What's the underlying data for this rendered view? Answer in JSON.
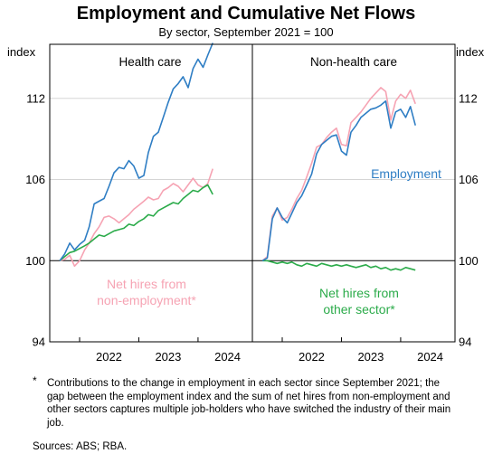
{
  "chart_data": {
    "type": "line",
    "title": "Employment and Cumulative Net Flows",
    "subtitle": "By sector, September 2021 = 100",
    "ylabel_left": "index",
    "ylabel_right": "index",
    "ylim": [
      94,
      116
    ],
    "yticks": [
      94,
      100,
      106,
      112
    ],
    "xticks": [
      "2022",
      "2023",
      "2024"
    ],
    "grid": "horizontal at 100 and 106, 112",
    "colors": {
      "employment": "#2f7ec4",
      "nonemp": "#f6a3b3",
      "othersector": "#2bab4a"
    },
    "panels": [
      {
        "title": "Health care",
        "series": [
          {
            "key": "employment",
            "color": "#2f7ec4",
            "x": [
              "2021-09",
              "2021-10",
              "2021-11",
              "2021-12",
              "2022-01",
              "2022-02",
              "2022-03",
              "2022-04",
              "2022-05",
              "2022-06",
              "2022-07",
              "2022-08",
              "2022-09",
              "2022-10",
              "2022-11",
              "2022-12",
              "2023-01",
              "2023-02",
              "2023-03",
              "2023-04",
              "2023-05",
              "2023-06",
              "2023-07",
              "2023-08",
              "2023-09",
              "2023-10",
              "2023-11",
              "2023-12",
              "2024-01",
              "2024-02",
              "2024-03",
              "2024-04"
            ],
            "values": [
              100.0,
              100.5,
              101.3,
              100.8,
              101.2,
              101.5,
              102.5,
              104.2,
              104.4,
              104.6,
              105.5,
              106.5,
              106.9,
              106.8,
              107.4,
              107.0,
              106.1,
              106.3,
              108.0,
              109.2,
              109.5,
              110.6,
              111.7,
              112.7,
              113.1,
              113.6,
              112.8,
              114.2,
              114.9,
              114.3,
              115.2,
              116.1
            ]
          },
          {
            "key": "nonemp",
            "color": "#f6a3b3",
            "x": [
              "2021-09",
              "2021-10",
              "2021-11",
              "2021-12",
              "2022-01",
              "2022-02",
              "2022-03",
              "2022-04",
              "2022-05",
              "2022-06",
              "2022-07",
              "2022-08",
              "2022-09",
              "2022-10",
              "2022-11",
              "2022-12",
              "2023-01",
              "2023-02",
              "2023-03",
              "2023-04",
              "2023-05",
              "2023-06",
              "2023-07",
              "2023-08",
              "2023-09",
              "2023-10",
              "2023-11",
              "2023-12",
              "2024-01",
              "2024-02",
              "2024-03",
              "2024-04"
            ],
            "values": [
              100.0,
              100.1,
              100.4,
              99.6,
              100.0,
              100.8,
              101.3,
              102.0,
              102.5,
              103.2,
              103.3,
              103.1,
              102.8,
              103.1,
              103.4,
              103.8,
              104.1,
              104.4,
              104.7,
              104.5,
              104.6,
              105.2,
              105.4,
              105.7,
              105.5,
              105.1,
              105.6,
              106.1,
              105.6,
              105.4,
              105.7,
              106.8
            ]
          },
          {
            "key": "othersector",
            "color": "#2bab4a",
            "x": [
              "2021-09",
              "2021-10",
              "2021-11",
              "2021-12",
              "2022-01",
              "2022-02",
              "2022-03",
              "2022-04",
              "2022-05",
              "2022-06",
              "2022-07",
              "2022-08",
              "2022-09",
              "2022-10",
              "2022-11",
              "2022-12",
              "2023-01",
              "2023-02",
              "2023-03",
              "2023-04",
              "2023-05",
              "2023-06",
              "2023-07",
              "2023-08",
              "2023-09",
              "2023-10",
              "2023-11",
              "2023-12",
              "2024-01",
              "2024-02",
              "2024-03",
              "2024-04"
            ],
            "values": [
              100.0,
              100.3,
              100.6,
              100.7,
              100.9,
              101.1,
              101.3,
              101.6,
              101.9,
              101.8,
              102.0,
              102.2,
              102.3,
              102.4,
              102.7,
              102.6,
              102.9,
              103.1,
              103.4,
              103.3,
              103.7,
              103.9,
              104.1,
              104.3,
              104.2,
              104.6,
              104.9,
              105.2,
              105.1,
              105.4,
              105.6,
              104.9
            ]
          }
        ],
        "annotations": [
          {
            "text": "Net hires from",
            "series": "nonemp"
          },
          {
            "text": "non-employment*",
            "series": "nonemp"
          }
        ]
      },
      {
        "title": "Non-health care",
        "series": [
          {
            "key": "employment",
            "color": "#2f7ec4",
            "x": [
              "2021-09",
              "2021-10",
              "2021-11",
              "2021-12",
              "2022-01",
              "2022-02",
              "2022-03",
              "2022-04",
              "2022-05",
              "2022-06",
              "2022-07",
              "2022-08",
              "2022-09",
              "2022-10",
              "2022-11",
              "2022-12",
              "2023-01",
              "2023-02",
              "2023-03",
              "2023-04",
              "2023-05",
              "2023-06",
              "2023-07",
              "2023-08",
              "2023-09",
              "2023-10",
              "2023-11",
              "2023-12",
              "2024-01",
              "2024-02",
              "2024-03",
              "2024-04"
            ],
            "values": [
              100.0,
              100.2,
              103.1,
              103.9,
              103.2,
              102.8,
              103.5,
              104.3,
              104.8,
              105.6,
              106.4,
              107.9,
              108.6,
              108.9,
              109.2,
              109.3,
              108.1,
              107.8,
              109.5,
              110.0,
              110.6,
              110.9,
              111.2,
              111.3,
              111.5,
              111.8,
              109.8,
              111.0,
              111.2,
              110.6,
              111.4,
              110.0
            ]
          },
          {
            "key": "nonemp",
            "color": "#f6a3b3",
            "x": [
              "2021-09",
              "2021-10",
              "2021-11",
              "2021-12",
              "2022-01",
              "2022-02",
              "2022-03",
              "2022-04",
              "2022-05",
              "2022-06",
              "2022-07",
              "2022-08",
              "2022-09",
              "2022-10",
              "2022-11",
              "2022-12",
              "2023-01",
              "2023-02",
              "2023-03",
              "2023-04",
              "2023-05",
              "2023-06",
              "2023-07",
              "2023-08",
              "2023-09",
              "2023-10",
              "2023-11",
              "2023-12",
              "2024-01",
              "2024-02",
              "2024-03",
              "2024-04"
            ],
            "values": [
              100.0,
              100.3,
              103.3,
              103.9,
              103.0,
              103.2,
              103.8,
              104.6,
              105.2,
              106.2,
              107.2,
              108.4,
              108.6,
              109.1,
              109.5,
              109.8,
              108.6,
              108.5,
              110.2,
              110.6,
              111.0,
              111.5,
              112.0,
              112.4,
              112.8,
              112.5,
              110.4,
              111.8,
              112.3,
              112.0,
              112.6,
              111.6
            ]
          },
          {
            "key": "othersector",
            "color": "#2bab4a",
            "x": [
              "2021-09",
              "2021-10",
              "2021-11",
              "2021-12",
              "2022-01",
              "2022-02",
              "2022-03",
              "2022-04",
              "2022-05",
              "2022-06",
              "2022-07",
              "2022-08",
              "2022-09",
              "2022-10",
              "2022-11",
              "2022-12",
              "2023-01",
              "2023-02",
              "2023-03",
              "2023-04",
              "2023-05",
              "2023-06",
              "2023-07",
              "2023-08",
              "2023-09",
              "2023-10",
              "2023-11",
              "2023-12",
              "2024-01",
              "2024-02",
              "2024-03",
              "2024-04"
            ],
            "values": [
              100.0,
              100.0,
              99.9,
              99.8,
              99.9,
              99.8,
              99.9,
              99.7,
              99.6,
              99.8,
              99.7,
              99.6,
              99.8,
              99.7,
              99.6,
              99.7,
              99.6,
              99.7,
              99.6,
              99.5,
              99.6,
              99.7,
              99.5,
              99.6,
              99.4,
              99.5,
              99.3,
              99.4,
              99.3,
              99.5,
              99.4,
              99.3
            ]
          }
        ],
        "annotations": [
          {
            "text": "Employment",
            "series": "employment"
          },
          {
            "text": "Net hires from",
            "series": "othersector"
          },
          {
            "text": "other sector*",
            "series": "othersector"
          }
        ]
      }
    ]
  },
  "footnote_marker": "*",
  "footnote": "Contributions to the change in employment in each sector since September 2021; the gap between the employment index and the sum of net hires from non-employment and other sectors captures multiple job-holders who have switched the industry of their main job.",
  "sources": "Sources: ABS; RBA."
}
